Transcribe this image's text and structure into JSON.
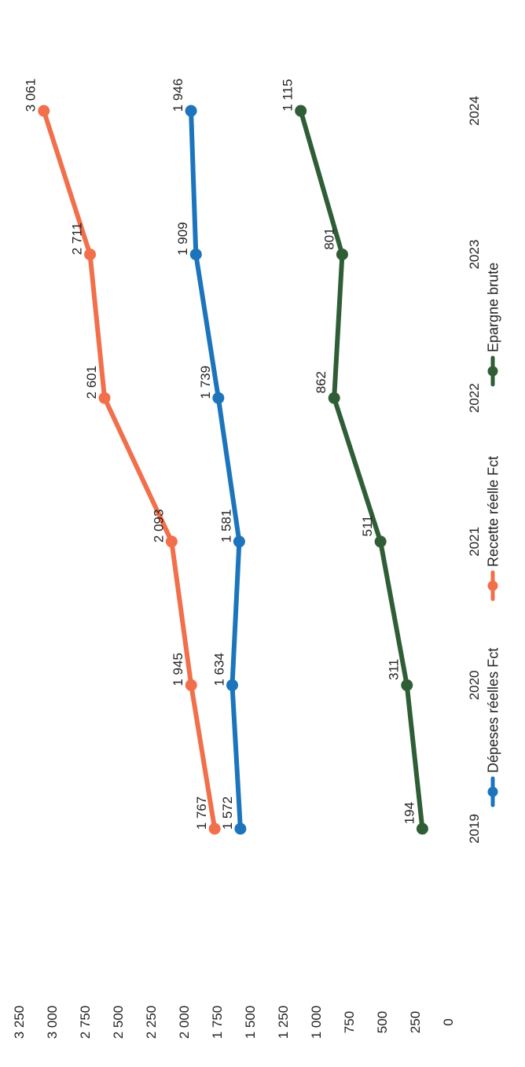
{
  "chart_data": {
    "type": "line",
    "title": "",
    "xlabel": "",
    "ylabel": "",
    "categories": [
      "2019",
      "2020",
      "2021",
      "2022",
      "2023",
      "2024"
    ],
    "ylim": [
      0,
      3250
    ],
    "yticks": [
      "0",
      "250",
      "500",
      "750",
      "1 000",
      "1 250",
      "1 500",
      "1 750",
      "2 000",
      "2 250",
      "2 500",
      "2 750",
      "3 000",
      "3 250"
    ],
    "grid": false,
    "legend_position": "bottom",
    "orientation": "rotated 90° clockwise",
    "series": [
      {
        "name": "Dépeses réelles Fct",
        "color": "#1c75bc",
        "values": [
          1572,
          1634,
          1581,
          1739,
          1909,
          1946
        ],
        "labels": [
          "1 572",
          "1 634",
          "1 581",
          "1 739",
          "1 909",
          "1 946"
        ]
      },
      {
        "name": "Recette réelle Fct",
        "color": "#f26f4b",
        "values": [
          1767,
          1945,
          2093,
          2601,
          2711,
          3061
        ],
        "labels": [
          "1 767",
          "1 945",
          "2 093",
          "2 601",
          "2 711",
          "3 061"
        ]
      },
      {
        "name": "Epargne brute",
        "color": "#2f5e36",
        "values": [
          194,
          311,
          511,
          862,
          801,
          1115
        ],
        "labels": [
          "194",
          "311",
          "511",
          "862",
          "801",
          "1 115"
        ]
      }
    ]
  }
}
